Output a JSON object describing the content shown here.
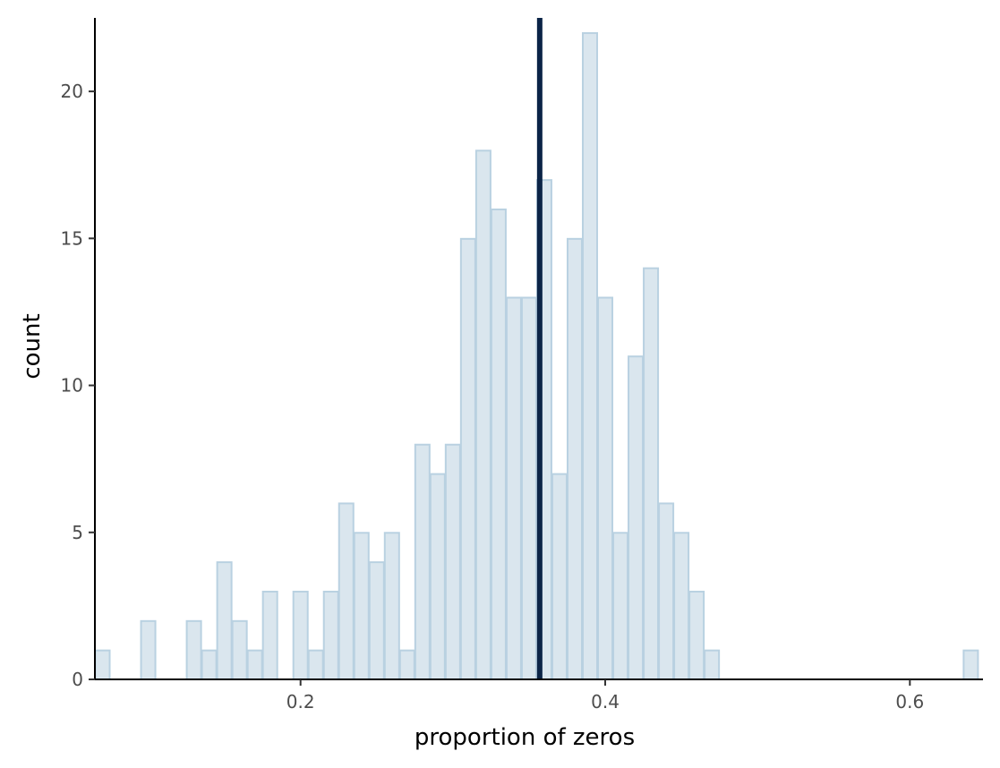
{
  "chart_data": {
    "type": "histogram",
    "title": "",
    "xlabel": "proportion of zeros",
    "ylabel": "count",
    "xlim": [
      0.065,
      0.648
    ],
    "ylim": [
      0,
      22.5
    ],
    "bin_width": 0.01,
    "bins_start": 0.065,
    "x_ticks": [
      0.2,
      0.4,
      0.6
    ],
    "x_tick_labels": [
      "0.2",
      "0.4",
      "0.6"
    ],
    "y_ticks": [
      0,
      5,
      10,
      15,
      20
    ],
    "y_tick_labels": [
      "0",
      "5",
      "10",
      "15",
      "20"
    ],
    "values": [
      1,
      0,
      0,
      2,
      0,
      0,
      2,
      1,
      4,
      2,
      1,
      3,
      0,
      3,
      1,
      3,
      6,
      5,
      4,
      5,
      1,
      8,
      7,
      8,
      15,
      18,
      16,
      13,
      13,
      17,
      7,
      15,
      22,
      13,
      5,
      11,
      14,
      6,
      5,
      3,
      1,
      0,
      0,
      0,
      0,
      0,
      0,
      0,
      0,
      0,
      0,
      0,
      0,
      0,
      0,
      0,
      0,
      1
    ],
    "vline": {
      "x": 0.357,
      "color": "#0b2447"
    },
    "bar_fill": "#dae6ee",
    "bar_stroke": "#b9d1e1",
    "grid": false
  }
}
